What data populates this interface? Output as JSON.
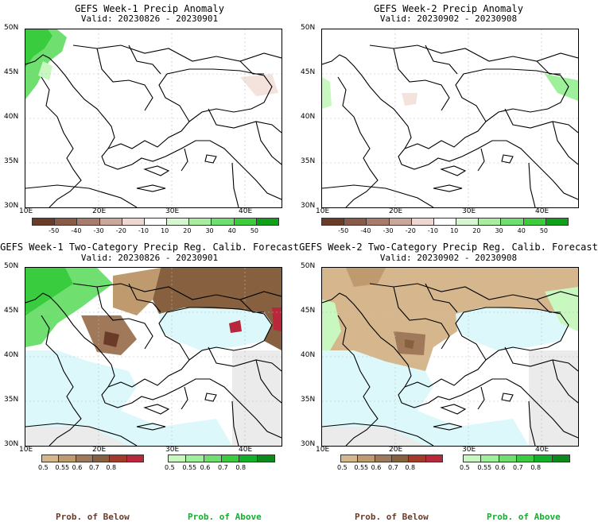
{
  "panels": [
    {
      "title": "GEFS Week-1 Precip Anomaly",
      "valid": "Valid: 20230826 - 20230901"
    },
    {
      "title": "GEFS Week-2 Precip Anomaly",
      "valid": "Valid: 20230902 - 20230908"
    },
    {
      "title": "GEFS Week-1 Two-Category Precip Reg. Calib. Forecast",
      "valid": "Valid: 20230826 - 20230901"
    },
    {
      "title": "GEFS Week-2 Two-Category Precip Reg. Calib. Forecast",
      "valid": "Valid: 20230902 - 20230908"
    }
  ],
  "axes": {
    "lat_labels": [
      "50N",
      "45N",
      "40N",
      "35N",
      "30N"
    ],
    "lon_labels": [
      "10E",
      "20E",
      "30E",
      "40E"
    ]
  },
  "anomaly_colorbar": {
    "labels": [
      "-50",
      "-40",
      "-30",
      "-20",
      "-10",
      "10",
      "20",
      "30",
      "40",
      "50"
    ],
    "colors": [
      "#6b3b2a",
      "#8a5a48",
      "#a87c6c",
      "#c9a79a",
      "#ecd8d0",
      "#ffffff",
      "#d8f5d2",
      "#a9eda0",
      "#6fe070",
      "#3ccc3c",
      "#0fa01a"
    ]
  },
  "prob_colorbar_below": {
    "labels": [
      "0.5",
      "0.55",
      "0.6",
      "0.7",
      "0.8"
    ],
    "colors": [
      "#d6b68c",
      "#bf9a6e",
      "#a0785a",
      "#86603f",
      "#a33a2a",
      "#b8273a"
    ]
  },
  "prob_colorbar_above": {
    "labels": [
      "0.5",
      "0.55",
      "0.6",
      "0.7",
      "0.8"
    ],
    "colors": [
      "#c9f7c0",
      "#9ff09a",
      "#6fe070",
      "#39cc3f",
      "#10b02a",
      "#0a8a1a"
    ]
  },
  "legend": {
    "below": "Prob. of Below",
    "above": "Prob. of Above"
  },
  "colors": {
    "sea_light": "#dcf8fb",
    "land_gray": "#ebebeb",
    "land_white": "#ffffff"
  }
}
